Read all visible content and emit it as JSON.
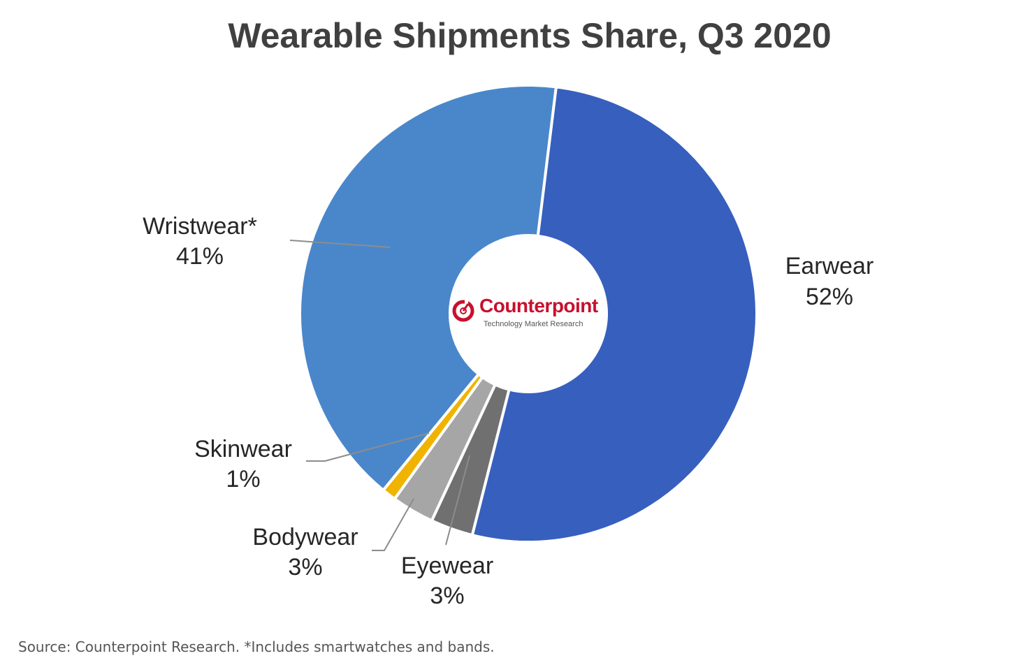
{
  "chart_data": {
    "type": "pie",
    "donut": true,
    "title": "Wearable Shipments Share, Q3 2020",
    "slices": [
      {
        "name": "Earwear",
        "value": 52,
        "label": "52%",
        "color": "#375FBE"
      },
      {
        "name": "Eyewear",
        "value": 3,
        "label": "3%",
        "color": "#707070"
      },
      {
        "name": "Bodywear",
        "value": 3,
        "label": "3%",
        "color": "#A6A6A6"
      },
      {
        "name": "Skinwear",
        "value": 1,
        "label": "1%",
        "color": "#F0B400"
      },
      {
        "name": "Wristwear*",
        "value": 41,
        "label": "41%",
        "color": "#4A87CA"
      }
    ],
    "legend": "none"
  },
  "center_logo": {
    "name": "Counterpoint",
    "tagline": "Technology Market Research",
    "color": "#C8102E"
  },
  "source_note": "Source: Counterpoint Research. *Includes smartwatches and bands."
}
